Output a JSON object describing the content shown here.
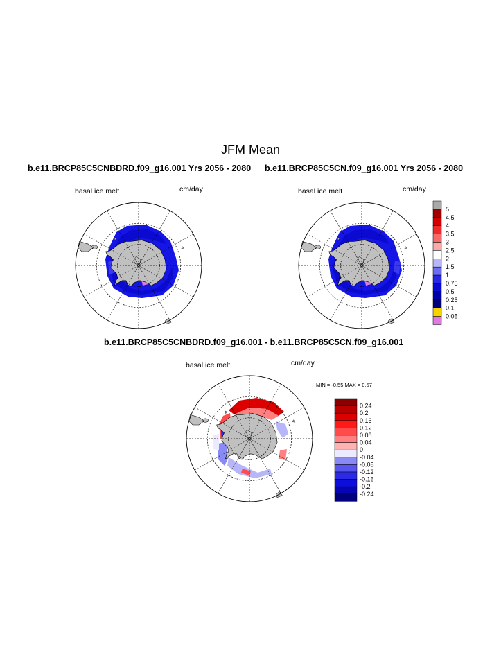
{
  "title": "JFM Mean",
  "panels": [
    {
      "title": "b.e11.BRCP85C5CNBDRD.f09_g16.001  Yrs 2056 - 2080",
      "variable": "basal ice melt",
      "units": "cm/day"
    },
    {
      "title": "b.e11.BRCP85C5CN.f09_g16.001  Yrs 2056 - 2080",
      "variable": "basal ice melt",
      "units": "cm/day"
    },
    {
      "title": "b.e11.BRCP85C5CNBDRD.f09_g16.001 - b.e11.BRCP85C5CN.f09_g16.001",
      "variable": "basal ice melt",
      "units": "cm/day"
    }
  ],
  "diff_stats": {
    "text": "MIN =  -0.55 MAX =   0.57"
  },
  "colorbar_main": {
    "labels": [
      "5",
      "4.5",
      "4",
      "3.5",
      "3",
      "2.5",
      "2",
      "1.5",
      "1",
      "0.75",
      "0.5",
      "0.25",
      "0.1",
      "0.05"
    ],
    "colors": [
      "#aaaaaa",
      "#a00000",
      "#d40000",
      "#ee2a2a",
      "#f86a6a",
      "#fbaaaa",
      "#ffffff",
      "#b6b6f8",
      "#6e6ef2",
      "#2828e6",
      "#0a0ad2",
      "#0000aa",
      "#00007a",
      "#f5d400",
      "#e07ae0"
    ]
  },
  "colorbar_diff": {
    "labels": [
      "0.24",
      "0.2",
      "0.16",
      "0.12",
      "0.08",
      "0.04",
      "0",
      "-0.04",
      "-0.08",
      "-0.12",
      "-0.16",
      "-0.2",
      "-0.24"
    ],
    "colors": [
      "#8a0000",
      "#bb0000",
      "#dd0000",
      "#ff1a1a",
      "#ff4b4b",
      "#ff8080",
      "#ffb2b2",
      "#eceaff",
      "#8a8af4",
      "#5656ee",
      "#2b2be6",
      "#0e0edc",
      "#0505b4",
      "#00007e"
    ]
  }
}
